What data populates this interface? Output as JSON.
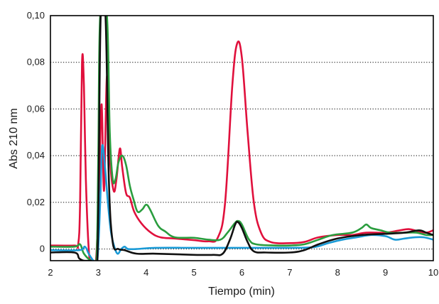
{
  "chart_data": {
    "type": "line",
    "title": "",
    "xlabel": "Tiempo (min)",
    "ylabel": "Abs 210 nm",
    "xlim": [
      2,
      10
    ],
    "ylim": [
      -0.005,
      0.1
    ],
    "x_ticks": [
      "2",
      "3",
      "4",
      "5",
      "6",
      "7",
      "8",
      "9",
      "10"
    ],
    "y_ticks": [
      "0",
      "0,02",
      "0,04",
      "0,06",
      "0,08",
      "0,10"
    ],
    "grid": "horizontal dotted",
    "legend": "none",
    "series": [
      {
        "color": "#e0103c",
        "points": [
          [
            2.0,
            0.0015
          ],
          [
            2.5,
            0.0015
          ],
          [
            2.58,
            0.002
          ],
          [
            2.62,
            0.02
          ],
          [
            2.66,
            0.08
          ],
          [
            2.7,
            0.07
          ],
          [
            2.74,
            0.03
          ],
          [
            2.8,
            0.0
          ],
          [
            2.85,
            -0.005
          ],
          [
            2.95,
            -0.005
          ],
          [
            3.02,
            0.03
          ],
          [
            3.07,
            0.062
          ],
          [
            3.12,
            0.025
          ],
          [
            3.18,
            0.074
          ],
          [
            3.24,
            0.04
          ],
          [
            3.32,
            0.025
          ],
          [
            3.38,
            0.03
          ],
          [
            3.45,
            0.043
          ],
          [
            3.5,
            0.035
          ],
          [
            3.58,
            0.024
          ],
          [
            3.66,
            0.022
          ],
          [
            3.75,
            0.016
          ],
          [
            3.9,
            0.011
          ],
          [
            4.1,
            0.007
          ],
          [
            4.3,
            0.005
          ],
          [
            4.6,
            0.0045
          ],
          [
            5.0,
            0.0038
          ],
          [
            5.3,
            0.0033
          ],
          [
            5.5,
            0.005
          ],
          [
            5.65,
            0.02
          ],
          [
            5.8,
            0.07
          ],
          [
            5.9,
            0.088
          ],
          [
            6.0,
            0.082
          ],
          [
            6.12,
            0.05
          ],
          [
            6.25,
            0.02
          ],
          [
            6.4,
            0.007
          ],
          [
            6.6,
            0.003
          ],
          [
            7.0,
            0.0025
          ],
          [
            7.3,
            0.003
          ],
          [
            7.6,
            0.005
          ],
          [
            8.0,
            0.006
          ],
          [
            8.3,
            0.006
          ],
          [
            8.6,
            0.007
          ],
          [
            9.0,
            0.007
          ],
          [
            9.3,
            0.008
          ],
          [
            9.5,
            0.0085
          ],
          [
            9.7,
            0.0075
          ],
          [
            9.85,
            0.007
          ],
          [
            10.0,
            0.008
          ]
        ]
      },
      {
        "color": "#2a9d3e",
        "points": [
          [
            2.0,
            0.001
          ],
          [
            2.5,
            0.001
          ],
          [
            2.62,
            0.002
          ],
          [
            2.7,
            -0.002
          ],
          [
            2.85,
            -0.005
          ],
          [
            2.96,
            -0.005
          ],
          [
            3.0,
            0.04
          ],
          [
            3.04,
            0.1
          ],
          [
            3.18,
            0.1
          ],
          [
            3.24,
            0.05
          ],
          [
            3.3,
            0.03
          ],
          [
            3.36,
            0.03
          ],
          [
            3.42,
            0.037
          ],
          [
            3.5,
            0.04
          ],
          [
            3.58,
            0.036
          ],
          [
            3.66,
            0.027
          ],
          [
            3.74,
            0.021
          ],
          [
            3.82,
            0.016
          ],
          [
            3.92,
            0.017
          ],
          [
            4.0,
            0.019
          ],
          [
            4.08,
            0.017
          ],
          [
            4.25,
            0.01
          ],
          [
            4.4,
            0.0075
          ],
          [
            4.6,
            0.005
          ],
          [
            5.0,
            0.0048
          ],
          [
            5.3,
            0.004
          ],
          [
            5.55,
            0.004
          ],
          [
            5.7,
            0.007
          ],
          [
            5.85,
            0.011
          ],
          [
            5.92,
            0.012
          ],
          [
            6.0,
            0.0105
          ],
          [
            6.15,
            0.004
          ],
          [
            6.3,
            0.002
          ],
          [
            6.7,
            0.0015
          ],
          [
            7.0,
            0.0015
          ],
          [
            7.3,
            0.002
          ],
          [
            7.6,
            0.004
          ],
          [
            7.9,
            0.006
          ],
          [
            8.3,
            0.007
          ],
          [
            8.5,
            0.009
          ],
          [
            8.6,
            0.0105
          ],
          [
            8.7,
            0.009
          ],
          [
            8.9,
            0.008
          ],
          [
            9.1,
            0.007
          ],
          [
            9.4,
            0.007
          ],
          [
            9.65,
            0.007
          ],
          [
            9.85,
            0.006
          ],
          [
            10.0,
            0.006
          ]
        ]
      },
      {
        "color": "#1a9ad6",
        "points": [
          [
            2.0,
            -0.0005
          ],
          [
            2.6,
            -0.0005
          ],
          [
            2.72,
            0.001
          ],
          [
            2.8,
            -0.002
          ],
          [
            2.9,
            -0.005
          ],
          [
            2.98,
            -0.005
          ],
          [
            3.04,
            0.02
          ],
          [
            3.08,
            0.044
          ],
          [
            3.14,
            0.035
          ],
          [
            3.2,
            0.02
          ],
          [
            3.26,
            0.008
          ],
          [
            3.32,
            0.002
          ],
          [
            3.4,
            -0.002
          ],
          [
            3.48,
            0.0
          ],
          [
            3.55,
            0.001
          ],
          [
            3.62,
            0.0
          ],
          [
            3.8,
            0.0
          ],
          [
            4.2,
            0.0005
          ],
          [
            5.0,
            0.0005
          ],
          [
            6.0,
            0.0005
          ],
          [
            7.0,
            0.0005
          ],
          [
            7.5,
            0.0008
          ],
          [
            7.8,
            0.0025
          ],
          [
            8.1,
            0.004
          ],
          [
            8.4,
            0.005
          ],
          [
            8.7,
            0.006
          ],
          [
            9.0,
            0.0055
          ],
          [
            9.2,
            0.004
          ],
          [
            9.4,
            0.0045
          ],
          [
            9.6,
            0.005
          ],
          [
            9.8,
            0.005
          ],
          [
            10.0,
            0.004
          ]
        ]
      },
      {
        "color": "#111111",
        "points": [
          [
            2.0,
            -0.0015
          ],
          [
            2.5,
            -0.0015
          ],
          [
            2.6,
            -0.004
          ],
          [
            2.7,
            -0.005
          ],
          [
            2.85,
            -0.005
          ],
          [
            2.98,
            -0.005
          ],
          [
            3.05,
            0.1
          ],
          [
            3.15,
            0.1
          ],
          [
            3.22,
            0.03
          ],
          [
            3.3,
            0.003
          ],
          [
            3.42,
            0.0
          ],
          [
            3.55,
            -0.0005
          ],
          [
            3.8,
            -0.002
          ],
          [
            4.2,
            -0.002
          ],
          [
            5.0,
            -0.0025
          ],
          [
            5.4,
            -0.0025
          ],
          [
            5.6,
            -0.002
          ],
          [
            5.75,
            0.004
          ],
          [
            5.86,
            0.0105
          ],
          [
            5.92,
            0.0115
          ],
          [
            6.0,
            0.009
          ],
          [
            6.12,
            0.003
          ],
          [
            6.25,
            -0.001
          ],
          [
            6.5,
            -0.0015
          ],
          [
            7.0,
            -0.0015
          ],
          [
            7.3,
            -0.0005
          ],
          [
            7.6,
            0.002
          ],
          [
            8.0,
            0.0045
          ],
          [
            8.5,
            0.006
          ],
          [
            9.0,
            0.0065
          ],
          [
            9.4,
            0.007
          ],
          [
            9.7,
            0.008
          ],
          [
            9.85,
            0.007
          ],
          [
            10.0,
            0.006
          ]
        ]
      }
    ]
  }
}
